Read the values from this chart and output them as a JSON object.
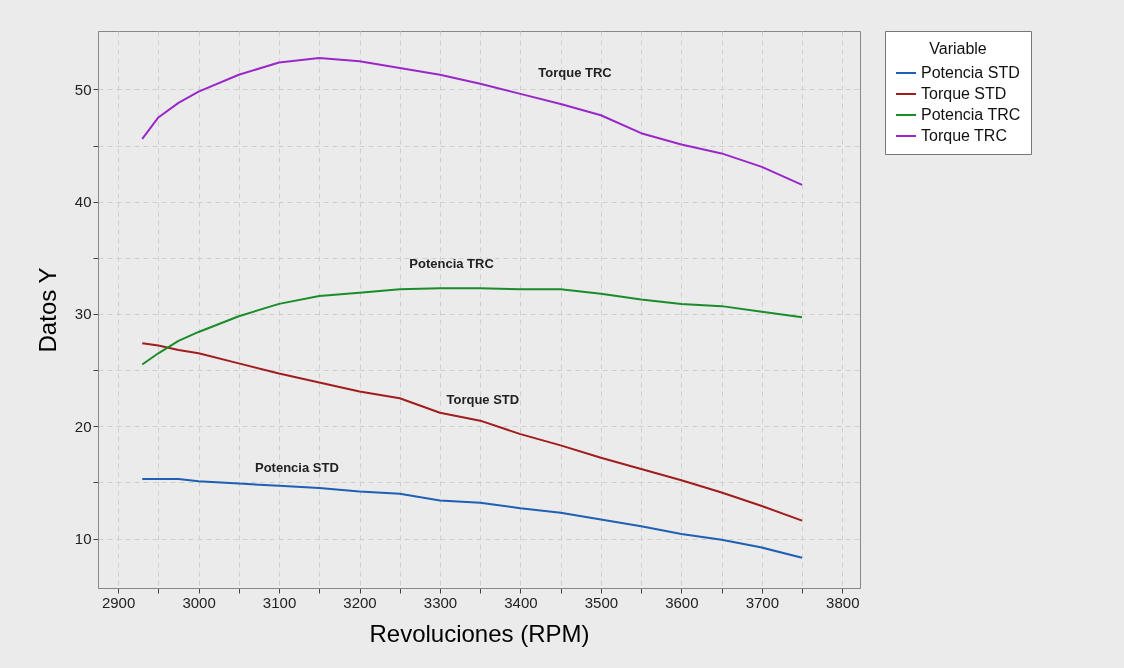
{
  "chart_data": {
    "type": "line",
    "xlabel": "Revoluciones (RPM)",
    "ylabel": "Datos Y",
    "legend_title": "Variable",
    "legend": "top right",
    "grid": true,
    "line_style": "solid",
    "marker": "none",
    "xlim": [
      2875,
      3822
    ],
    "ylim": [
      5.6,
      55.2
    ],
    "xticks": [
      2900,
      {
        "value": 2950,
        "label": null
      },
      3000,
      {
        "value": 3050,
        "label": null
      },
      3100,
      {
        "value": 3150,
        "label": null
      },
      3200,
      {
        "value": 3250,
        "label": null
      },
      3300,
      {
        "value": 3350,
        "label": null
      },
      3400,
      {
        "value": 3450,
        "label": null
      },
      3500,
      {
        "value": 3550,
        "label": null
      },
      3600,
      {
        "value": 3650,
        "label": null
      },
      3700,
      {
        "value": 3750,
        "label": null
      },
      3800
    ],
    "yticks": [
      10,
      {
        "value": 15,
        "label": null
      },
      20,
      {
        "value": 25,
        "label": null
      },
      30,
      {
        "value": 35,
        "label": null
      },
      40,
      {
        "value": 45,
        "label": null
      },
      50
    ],
    "series": [
      {
        "name": "Potencia STD",
        "color": "#1f5fb4",
        "x": [
          2930,
          2975,
          3000,
          3050,
          3100,
          3150,
          3200,
          3250,
          3300,
          3350,
          3400,
          3450,
          3500,
          3550,
          3600,
          3650,
          3700,
          3750
        ],
        "values": [
          15.3,
          15.3,
          15.1,
          14.9,
          14.7,
          14.5,
          14.2,
          14.0,
          13.4,
          13.2,
          12.7,
          12.3,
          11.7,
          11.1,
          10.4,
          9.9,
          9.2,
          8.3
        ]
      },
      {
        "name": "Torque STD",
        "color": "#a11d1d",
        "x": [
          2930,
          2950,
          2975,
          3000,
          3050,
          3100,
          3150,
          3200,
          3250,
          3300,
          3350,
          3400,
          3450,
          3500,
          3550,
          3600,
          3650,
          3700,
          3750
        ],
        "values": [
          27.4,
          27.2,
          26.8,
          26.5,
          25.6,
          24.7,
          23.9,
          23.1,
          22.5,
          21.2,
          20.5,
          19.3,
          18.3,
          17.2,
          16.2,
          15.2,
          14.1,
          12.9,
          11.6
        ]
      },
      {
        "name": "Potencia TRC",
        "color": "#1a8c2a",
        "x": [
          2930,
          2950,
          2975,
          3000,
          3050,
          3100,
          3150,
          3200,
          3250,
          3300,
          3350,
          3400,
          3450,
          3500,
          3550,
          3600,
          3650,
          3700,
          3750
        ],
        "values": [
          25.5,
          26.5,
          27.6,
          28.4,
          29.8,
          30.9,
          31.6,
          31.9,
          32.2,
          32.3,
          32.3,
          32.2,
          32.2,
          31.8,
          31.3,
          30.9,
          30.7,
          30.2,
          29.7
        ]
      },
      {
        "name": "Torque TRC",
        "color": "#9a27c9",
        "x": [
          2930,
          2950,
          2975,
          3000,
          3050,
          3100,
          3150,
          3200,
          3250,
          3300,
          3350,
          3400,
          3450,
          3500,
          3550,
          3600,
          3650,
          3700,
          3750
        ],
        "values": [
          45.6,
          47.5,
          48.8,
          49.8,
          51.3,
          52.4,
          52.8,
          52.5,
          51.9,
          51.3,
          50.5,
          49.6,
          48.7,
          47.7,
          46.1,
          45.1,
          44.3,
          43.1,
          41.5
        ]
      }
    ],
    "annotations": [
      "Torque TRC",
      "Potencia TRC",
      "Torque STD",
      "Potencia STD"
    ]
  }
}
